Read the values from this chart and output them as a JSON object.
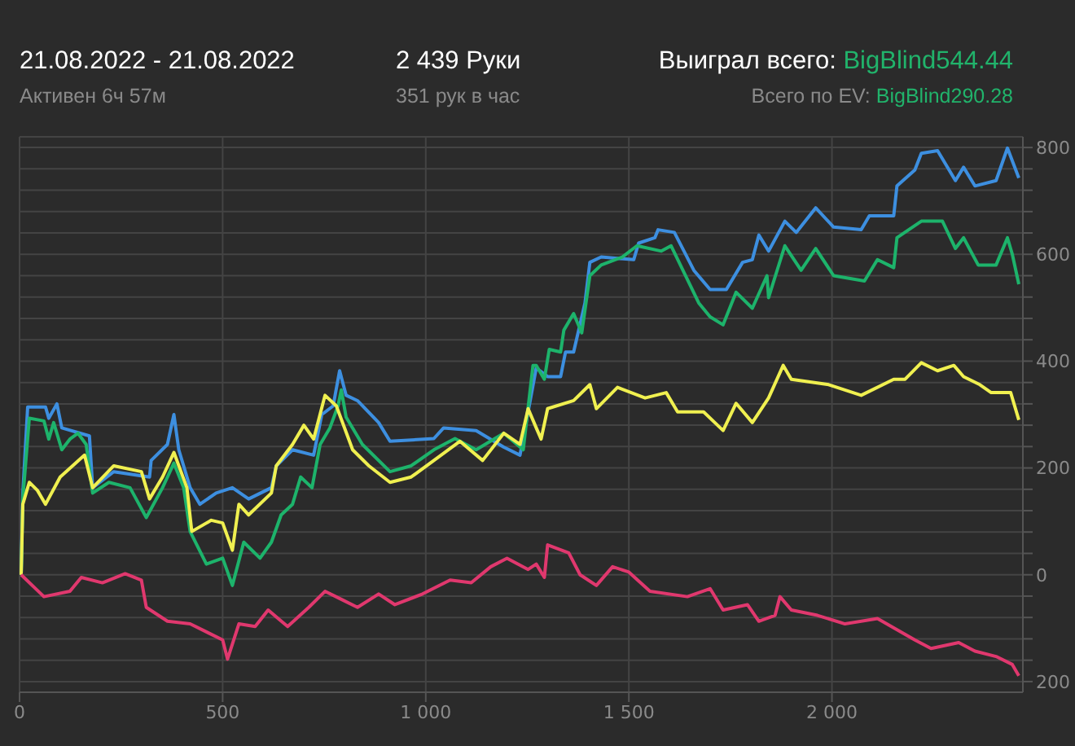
{
  "chart_data": {
    "type": "line",
    "title": "21.08.2022 - 21.08.2022",
    "subtitle": "Активен 6ч 57м",
    "annotations": [
      "2 439 Руки",
      "351 рук в час",
      "Выиграл всего: BigBlind544.44",
      "Всего по EV: BigBlind290.28"
    ],
    "xlim": [
      0,
      2470
    ],
    "xticks": [
      0,
      500,
      {
        "value": 1000,
        "label": "1 000"
      },
      {
        "value": 1500,
        "label": "1 500"
      },
      {
        "value": 2000,
        "label": "2 000"
      }
    ],
    "ylim": [
      -220,
      820
    ],
    "yticks": [
      {
        "value": -200,
        "label": "200"
      },
      {
        "value": -160,
        "label": null
      },
      {
        "value": -120,
        "label": null
      },
      {
        "value": -80,
        "label": null
      },
      {
        "value": -40,
        "label": null
      },
      0,
      {
        "value": 40,
        "label": null
      },
      {
        "value": 80,
        "label": null
      },
      {
        "value": 120,
        "label": null
      },
      {
        "value": 160,
        "label": null
      },
      200,
      {
        "value": 240,
        "label": null
      },
      {
        "value": 280,
        "label": null
      },
      {
        "value": 320,
        "label": null
      },
      {
        "value": 360,
        "label": null
      },
      400,
      {
        "value": 440,
        "label": null
      },
      {
        "value": 480,
        "label": null
      },
      {
        "value": 520,
        "label": null
      },
      {
        "value": 560,
        "label": null
      },
      600,
      {
        "value": 640,
        "label": null
      },
      {
        "value": 680,
        "label": null
      },
      {
        "value": 720,
        "label": null
      },
      {
        "value": 760,
        "label": null
      },
      800
    ],
    "grid": true,
    "marker": "none",
    "line_style": "solid",
    "series": [
      {
        "color": "#3d8fe0",
        "x": [
          4,
          8,
          20,
          64,
          72,
          92,
          104,
          172,
          180,
          232,
          320,
          324,
          364,
          380,
          392,
          420,
          444,
          484,
          524,
          564,
          620,
          632,
          672,
          724,
          744,
          772,
          788,
          804,
          832,
          884,
          912,
          1020,
          1044,
          1124,
          1192,
          1232,
          1252,
          1272,
          1300,
          1332,
          1344,
          1364,
          1392,
          1404,
          1432,
          1512,
          1524,
          1564,
          1572,
          1612,
          1660,
          1700,
          1740,
          1780,
          1804,
          1820,
          1844,
          1884,
          1912,
          1960,
          2004,
          2072,
          2092,
          2152,
          2160,
          2204,
          2220,
          2260,
          2304,
          2324,
          2352,
          2404,
          2432,
          2460
        ],
        "values": [
          0,
          152,
          314,
          314,
          293,
          320,
          275,
          260,
          163,
          193,
          183,
          214,
          244,
          300,
          234,
          163,
          132,
          153,
          163,
          142,
          163,
          204,
          234,
          224,
          300,
          316,
          382,
          336,
          326,
          285,
          250,
          255,
          275,
          270,
          239,
          224,
          305,
          387,
          371,
          371,
          417,
          417,
          509,
          585,
          595,
          590,
          621,
          631,
          646,
          641,
          570,
          534,
          534,
          585,
          590,
          636,
          606,
          662,
          641,
          687,
          651,
          646,
          672,
          672,
          728,
          758,
          789,
          794,
          738,
          763,
          728,
          738,
          799,
          743
        ]
      },
      {
        "color": "#1db36b",
        "x": [
          4,
          8,
          24,
          60,
          72,
          84,
          104,
          124,
          144,
          164,
          180,
          220,
          272,
          312,
          352,
          380,
          404,
          420,
          460,
          500,
          524,
          552,
          592,
          620,
          644,
          672,
          692,
          720,
          740,
          764,
          784,
          792,
          804,
          844,
          912,
          964,
          1020,
          1072,
          1124,
          1192,
          1240,
          1264,
          1272,
          1292,
          1304,
          1332,
          1340,
          1364,
          1384,
          1404,
          1432,
          1484,
          1520,
          1580,
          1604,
          1672,
          1700,
          1732,
          1764,
          1804,
          1840,
          1844,
          1884,
          1924,
          1960,
          2004,
          2080,
          2112,
          2152,
          2160,
          2220,
          2272,
          2304,
          2324,
          2360,
          2404,
          2432,
          2444,
          2460
        ],
        "values": [
          0,
          142,
          293,
          288,
          254,
          285,
          234,
          254,
          265,
          244,
          153,
          173,
          163,
          107,
          163,
          209,
          163,
          81,
          20,
          31,
          -20,
          61,
          31,
          61,
          112,
          132,
          183,
          163,
          244,
          275,
          316,
          346,
          295,
          244,
          193,
          204,
          234,
          255,
          234,
          265,
          234,
          392,
          392,
          366,
          422,
          417,
          458,
          489,
          453,
          560,
          580,
          595,
          616,
          606,
          616,
          509,
          483,
          468,
          529,
          499,
          560,
          519,
          616,
          570,
          611,
          560,
          550,
          590,
          575,
          631,
          662,
          662,
          611,
          631,
          580,
          580,
          631,
          600,
          544
        ]
      },
      {
        "color": "#f0f050",
        "x": [
          4,
          8,
          24,
          44,
          64,
          100,
          160,
          180,
          232,
          300,
          320,
          352,
          380,
          412,
          424,
          472,
          500,
          524,
          540,
          564,
          620,
          632,
          672,
          700,
          724,
          752,
          780,
          820,
          860,
          912,
          964,
          1020,
          1084,
          1140,
          1192,
          1232,
          1252,
          1272,
          1284,
          1300,
          1364,
          1404,
          1420,
          1472,
          1540,
          1592,
          1620,
          1684,
          1732,
          1764,
          1804,
          1844,
          1880,
          1900,
          1992,
          2072,
          2152,
          2180,
          2220,
          2260,
          2300,
          2324,
          2364,
          2392,
          2440,
          2460
        ],
        "values": [
          0,
          132,
          173,
          158,
          132,
          183,
          224,
          163,
          204,
          193,
          142,
          183,
          229,
          163,
          81,
          102,
          97,
          46,
          132,
          112,
          153,
          204,
          244,
          280,
          254,
          336,
          316,
          234,
          204,
          173,
          183,
          214,
          250,
          214,
          265,
          244,
          311,
          275,
          254,
          311,
          326,
          356,
          311,
          351,
          331,
          341,
          305,
          305,
          270,
          321,
          285,
          331,
          392,
          366,
          356,
          336,
          366,
          366,
          397,
          382,
          392,
          371,
          356,
          341,
          341,
          290
        ]
      },
      {
        "color": "#e0386e",
        "x": [
          4,
          60,
          124,
          152,
          204,
          260,
          300,
          312,
          364,
          420,
          460,
          500,
          512,
          540,
          580,
          612,
          660,
          712,
          752,
          792,
          832,
          884,
          924,
          992,
          1060,
          1112,
          1160,
          1200,
          1252,
          1272,
          1292,
          1300,
          1352,
          1380,
          1420,
          1460,
          1500,
          1552,
          1644,
          1700,
          1732,
          1792,
          1820,
          1860,
          1872,
          1900,
          1964,
          2032,
          2112,
          2204,
          2244,
          2312,
          2352,
          2404,
          2444,
          2460
        ],
        "values": [
          0,
          -41,
          -31,
          -5,
          -15,
          2,
          -10,
          -61,
          -87,
          -92,
          -107,
          -122,
          -158,
          -92,
          -97,
          -66,
          -97,
          -61,
          -31,
          -46,
          -61,
          -36,
          -56,
          -36,
          -10,
          -15,
          15,
          31,
          10,
          20,
          -5,
          56,
          41,
          0,
          -20,
          15,
          5,
          -31,
          -41,
          -26,
          -66,
          -56,
          -87,
          -76,
          -41,
          -66,
          -76,
          -92,
          -82,
          -122,
          -138,
          -127,
          -143,
          -153,
          -168,
          -189
        ]
      }
    ]
  }
}
